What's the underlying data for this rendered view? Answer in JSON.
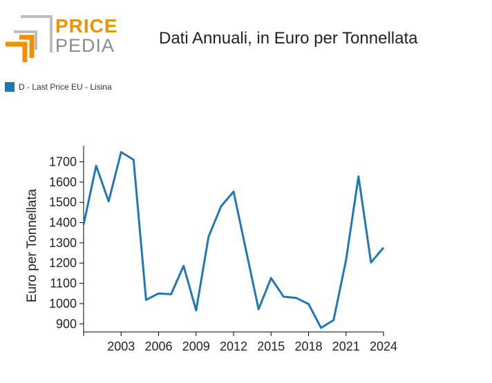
{
  "header": {
    "logo": {
      "top_word": "PRICE",
      "bottom_word": "PEDIA",
      "top_color": "#f29100",
      "bottom_color": "#8a8a8a"
    }
  },
  "chart_data": {
    "type": "line",
    "title": "Dati Annuali, in Euro per Tonnellata",
    "xlabel": "",
    "ylabel": "Euro per Tonnellata",
    "x": [
      2000,
      2001,
      2002,
      2003,
      2004,
      2005,
      2006,
      2007,
      2008,
      2009,
      2010,
      2011,
      2012,
      2013,
      2014,
      2015,
      2016,
      2017,
      2018,
      2019,
      2020,
      2021,
      2022,
      2023,
      2024
    ],
    "series": [
      {
        "name": "D - Last Price EU - Lisina",
        "color": "#1f77b4",
        "values": [
          1390,
          1680,
          1505,
          1748,
          1710,
          1018,
          1050,
          1046,
          1186,
          966,
          1330,
          1480,
          1553,
          1262,
          972,
          1126,
          1034,
          1028,
          998,
          880,
          918,
          1215,
          1628,
          1203,
          1276
        ]
      }
    ],
    "xlim": [
      2000,
      2024
    ],
    "ylim": [
      860,
      1780
    ],
    "x_ticks": [
      2003,
      2006,
      2009,
      2012,
      2015,
      2018,
      2021,
      2024
    ],
    "y_ticks": [
      900,
      1000,
      1100,
      1200,
      1300,
      1400,
      1500,
      1600,
      1700
    ],
    "legend_position": "top-left",
    "grid": false
  }
}
